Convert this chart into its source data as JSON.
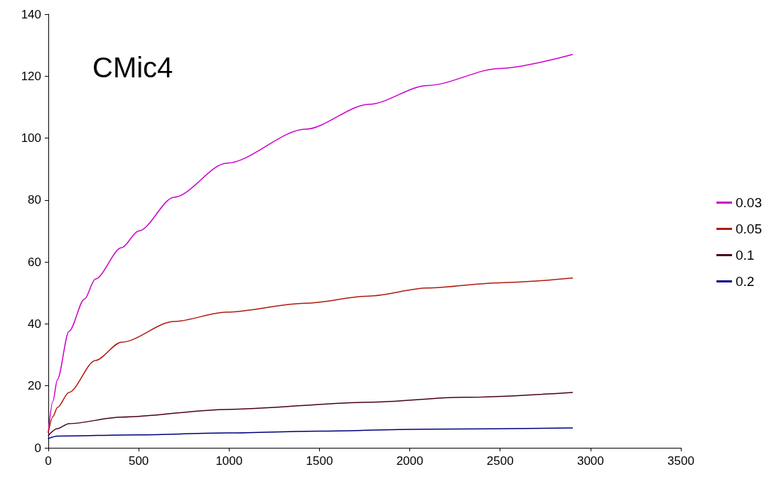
{
  "chart_data": {
    "type": "line",
    "title": "CMic4",
    "xlim": [
      0,
      3500
    ],
    "xticks": [
      0,
      500,
      1000,
      1500,
      2000,
      2500,
      3000,
      3500
    ],
    "ylim": [
      0,
      140
    ],
    "yticks": [
      0,
      20,
      40,
      60,
      80,
      100,
      120,
      140
    ],
    "grid": false,
    "legend": "right",
    "marker": "none",
    "line_style": "solid",
    "series": [
      {
        "name": "0.03",
        "color": "#cc00cc",
        "x": [
          0,
          25,
          50,
          114,
          200,
          260,
          405,
          500,
          696,
          987,
          1424,
          1774,
          2100,
          2500,
          2900
        ],
        "values": [
          5,
          15,
          22,
          37.6,
          48,
          54.5,
          64.6,
          70,
          80.9,
          91.9,
          102.9,
          110.9,
          117,
          122.5,
          127
        ]
      },
      {
        "name": "0.05",
        "color": "#b01a10",
        "x": [
          0,
          25,
          50,
          114,
          260,
          405,
          696,
          987,
          1424,
          1774,
          2100,
          2500,
          2900
        ],
        "values": [
          5,
          10,
          13,
          17.9,
          28.2,
          34.1,
          40.8,
          43.8,
          46.7,
          49,
          51.6,
          53.3,
          54.8
        ]
      },
      {
        "name": "0.1",
        "color": "#4a0020",
        "x": [
          0,
          50,
          114,
          405,
          987,
          1774,
          2300,
          2900
        ],
        "values": [
          4,
          6.2,
          7.8,
          9.9,
          12.4,
          14.7,
          16.3,
          17.9
        ]
      },
      {
        "name": "0.2",
        "color": "#000080",
        "x": [
          0,
          50,
          500,
          1000,
          1500,
          2100,
          2900
        ],
        "values": [
          3,
          3.8,
          4.2,
          4.8,
          5.4,
          6,
          6.4
        ]
      }
    ]
  }
}
